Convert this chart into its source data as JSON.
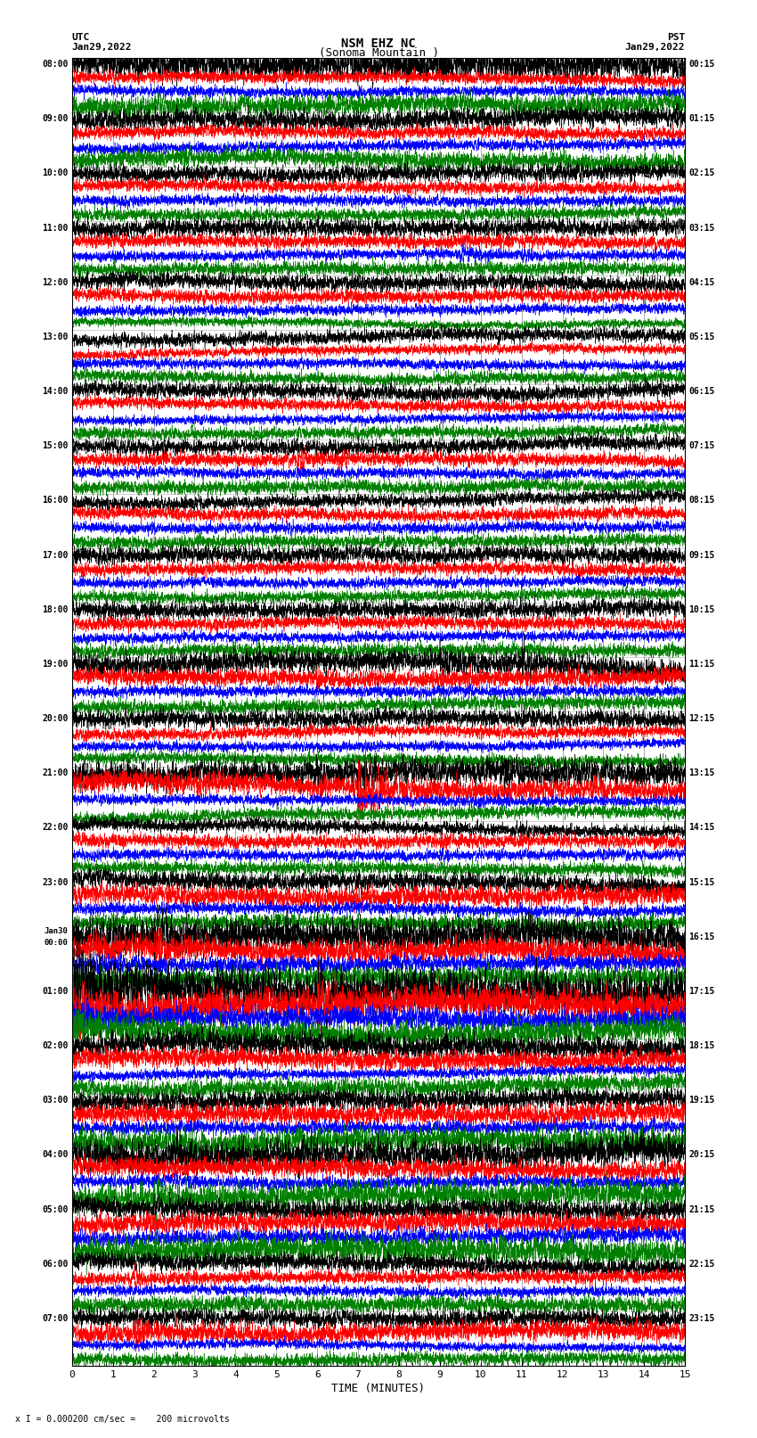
{
  "title_line1": "NSM EHZ NC",
  "title_line2": "(Sonoma Mountain )",
  "scale_label": "I = 0.000200 cm/sec",
  "left_header": "UTC",
  "left_date": "Jan29,2022",
  "right_header": "PST",
  "right_date": "Jan29,2022",
  "footer_note": "x I = 0.000200 cm/sec =    200 microvolts",
  "xlabel": "TIME (MINUTES)",
  "bg_color": "#ffffff",
  "trace_colors": [
    "black",
    "red",
    "blue",
    "green"
  ],
  "utc_times": [
    "08:00",
    "09:00",
    "10:00",
    "11:00",
    "12:00",
    "13:00",
    "14:00",
    "15:00",
    "16:00",
    "17:00",
    "18:00",
    "19:00",
    "20:00",
    "21:00",
    "22:00",
    "23:00",
    "Jan30\n00:00",
    "01:00",
    "02:00",
    "03:00",
    "04:00",
    "05:00",
    "06:00",
    "07:00"
  ],
  "pst_times": [
    "00:15",
    "01:15",
    "02:15",
    "03:15",
    "04:15",
    "05:15",
    "06:15",
    "07:15",
    "08:15",
    "09:15",
    "10:15",
    "11:15",
    "12:15",
    "13:15",
    "14:15",
    "15:15",
    "16:15",
    "17:15",
    "18:15",
    "19:15",
    "20:15",
    "21:15",
    "22:15",
    "23:15"
  ],
  "n_rows": 24,
  "traces_per_row": 4,
  "xmin": 0,
  "xmax": 15,
  "figwidth": 8.5,
  "figheight": 16.13
}
